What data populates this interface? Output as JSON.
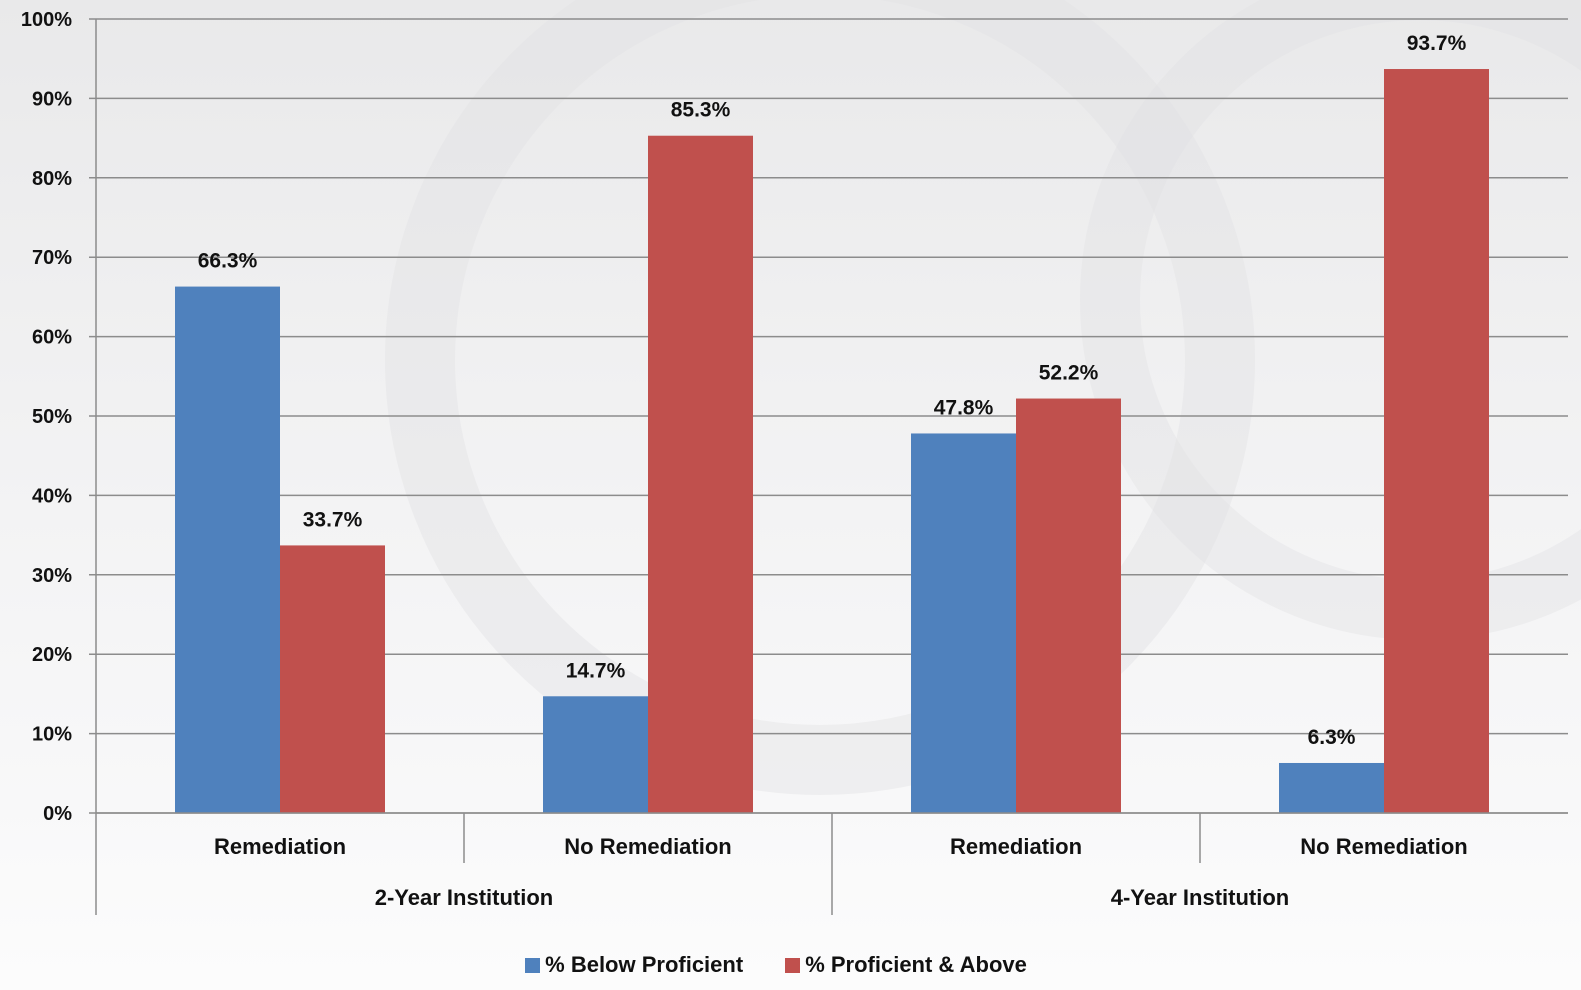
{
  "chart_data": {
    "type": "bar",
    "categories": [
      "Remediation",
      "No Remediation",
      "Remediation",
      "No Remediation"
    ],
    "groups": [
      {
        "label": "2-Year Institution",
        "categories": [
          "Remediation",
          "No Remediation"
        ]
      },
      {
        "label": "4-Year Institution",
        "categories": [
          "Remediation",
          "No Remediation"
        ]
      }
    ],
    "series": [
      {
        "name": "% Below Proficient",
        "color": "#4f81bd",
        "values": [
          66.3,
          14.7,
          47.8,
          6.3
        ],
        "labels": [
          "66.3%",
          "14.7%",
          "47.8%",
          "6.3%"
        ]
      },
      {
        "name": "% Proficient & Above",
        "color": "#c0504d",
        "values": [
          33.7,
          85.3,
          52.2,
          93.7
        ],
        "labels": [
          "33.7%",
          "85.3%",
          "52.2%",
          "93.7%"
        ]
      }
    ],
    "yticks": [
      "0%",
      "10%",
      "20%",
      "30%",
      "40%",
      "50%",
      "60%",
      "70%",
      "80%",
      "90%",
      "100%"
    ],
    "ylim": [
      0,
      100
    ],
    "grid": true,
    "legend_position": "bottom"
  }
}
